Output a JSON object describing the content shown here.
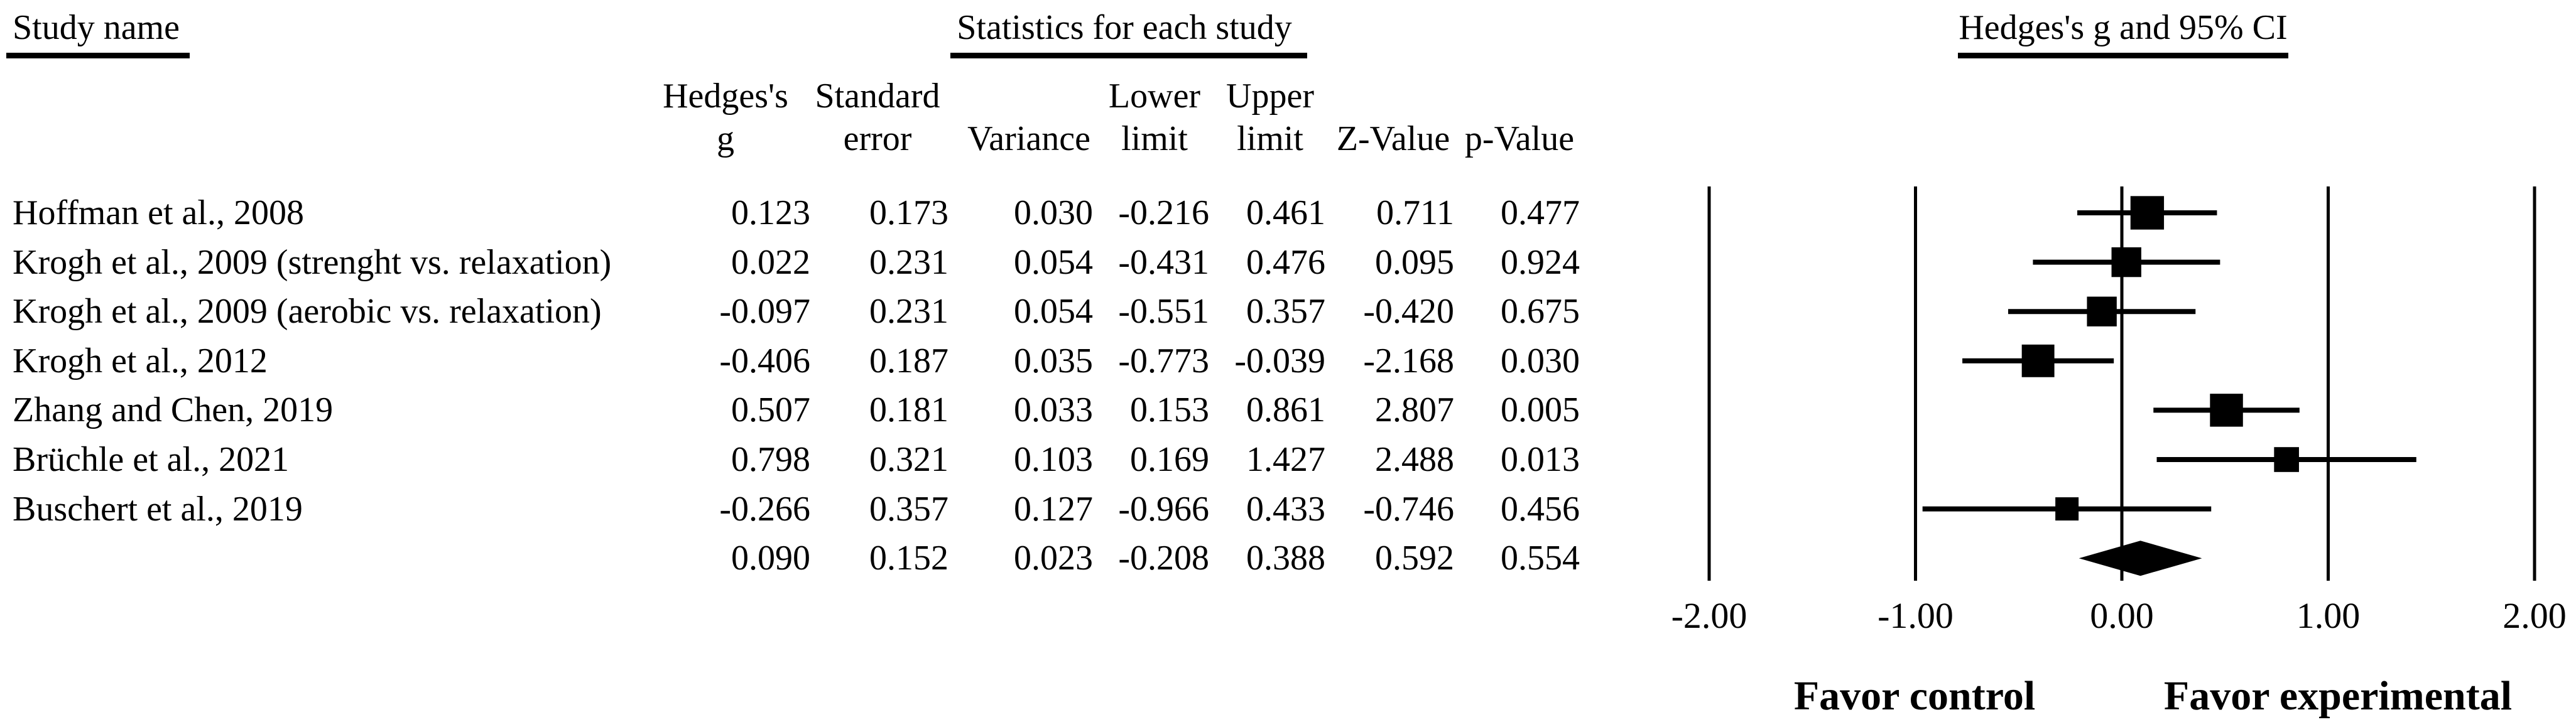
{
  "colors": {
    "ink": "#000000",
    "background": "#ffffff"
  },
  "headers": {
    "study_name": "Study name",
    "statistics": "Statistics for each study",
    "cols1": {
      "g": "Hedges's",
      "se": "Standard",
      "lower": "Lower",
      "upper": "Upper"
    },
    "cols2": {
      "g": "g",
      "se": "error",
      "variance": "Variance",
      "lower": "limit",
      "upper": "limit",
      "z": "Z-Value",
      "p": "p-Value"
    }
  },
  "chart_data": {
    "type": "forest",
    "title": "Hedges's g and 95% CI",
    "xlabel": "",
    "xlim": [
      -2,
      2
    ],
    "x_ticks": [
      "-2.00",
      "-1.00",
      "0.00",
      "1.00",
      "2.00"
    ],
    "favor_left": "Favor control",
    "favor_right": "Favor experimental",
    "columns": [
      "Hedges's g",
      "Standard error",
      "Variance",
      "Lower limit",
      "Upper limit",
      "Z-Value",
      "p-Value"
    ],
    "studies": [
      {
        "name": "Hoffman et al., 2008",
        "g": "0.123",
        "se": "0.173",
        "variance": "0.030",
        "lower": "-0.216",
        "upper": "0.461",
        "z": "0.711",
        "p": "0.477"
      },
      {
        "name": "Krogh et al., 2009 (strenght vs. relaxation)",
        "g": "0.022",
        "se": "0.231",
        "variance": "0.054",
        "lower": "-0.431",
        "upper": "0.476",
        "z": "0.095",
        "p": "0.924"
      },
      {
        "name": "Krogh et al., 2009 (aerobic vs. relaxation)",
        "g": "-0.097",
        "se": "0.231",
        "variance": "0.054",
        "lower": "-0.551",
        "upper": "0.357",
        "z": "-0.420",
        "p": "0.675"
      },
      {
        "name": "Krogh et al., 2012",
        "g": "-0.406",
        "se": "0.187",
        "variance": "0.035",
        "lower": "-0.773",
        "upper": "-0.039",
        "z": "-2.168",
        "p": "0.030"
      },
      {
        "name": "Zhang and Chen, 2019",
        "g": "0.507",
        "se": "0.181",
        "variance": "0.033",
        "lower": "0.153",
        "upper": "0.861",
        "z": "2.807",
        "p": "0.005"
      },
      {
        "name": "Brüchle et al., 2021",
        "g": "0.798",
        "se": "0.321",
        "variance": "0.103",
        "lower": "0.169",
        "upper": "1.427",
        "z": "2.488",
        "p": "0.013"
      },
      {
        "name": "Buschert et al., 2019",
        "g": "-0.266",
        "se": "0.357",
        "variance": "0.127",
        "lower": "-0.966",
        "upper": "0.433",
        "z": "-0.746",
        "p": "0.456"
      }
    ],
    "summary": {
      "name": "",
      "g": "0.090",
      "se": "0.152",
      "variance": "0.023",
      "lower": "-0.208",
      "upper": "0.388",
      "z": "0.592",
      "p": "0.554"
    }
  }
}
